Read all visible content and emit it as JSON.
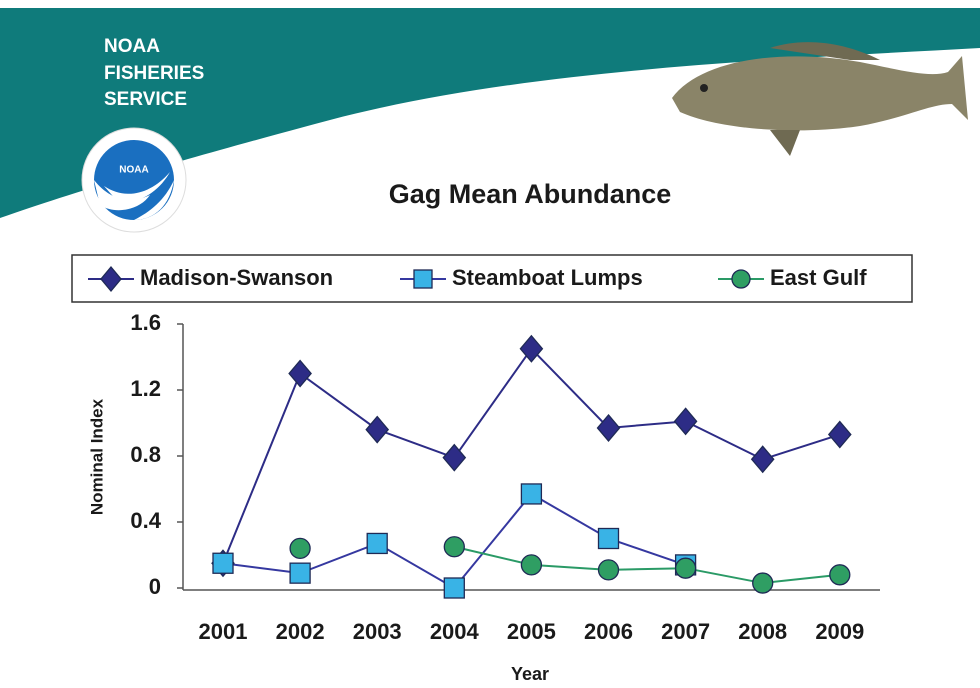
{
  "header": {
    "lines": [
      "NOAA",
      "FISHERIES",
      "SERVICE"
    ],
    "logo_text": "NOAA"
  },
  "chart_data": {
    "type": "line",
    "title": "Gag Mean Abundance",
    "x_label": "Year",
    "y_label": "Nominal Index",
    "categories": [
      "2001",
      "2002",
      "2003",
      "2004",
      "2005",
      "2006",
      "2007",
      "2008",
      "2009"
    ],
    "series": [
      {
        "name": "Madison-Swanson",
        "color": "#2d2c86",
        "marker": "diamond",
        "marker_color": "#2d2c86",
        "values": [
          0.15,
          1.3,
          0.96,
          0.79,
          1.45,
          0.97,
          1.01,
          0.78,
          0.93
        ]
      },
      {
        "name": "Steamboat Lumps",
        "color": "#3538a0",
        "marker": "square",
        "marker_color": "#39b3e6",
        "values": [
          0.15,
          0.09,
          0.27,
          0.0,
          0.57,
          0.3,
          0.14,
          null,
          null
        ]
      },
      {
        "name": "East Gulf",
        "color": "#2a9a66",
        "marker": "circle",
        "marker_color": "#2f9e63",
        "values": [
          null,
          0.24,
          null,
          0.25,
          0.14,
          0.11,
          0.12,
          0.03,
          0.08
        ]
      }
    ],
    "ylim": [
      0,
      1.6
    ],
    "yticks": [
      0,
      0.4,
      0.8,
      1.2,
      1.6
    ],
    "grid": false,
    "legend": "top"
  }
}
